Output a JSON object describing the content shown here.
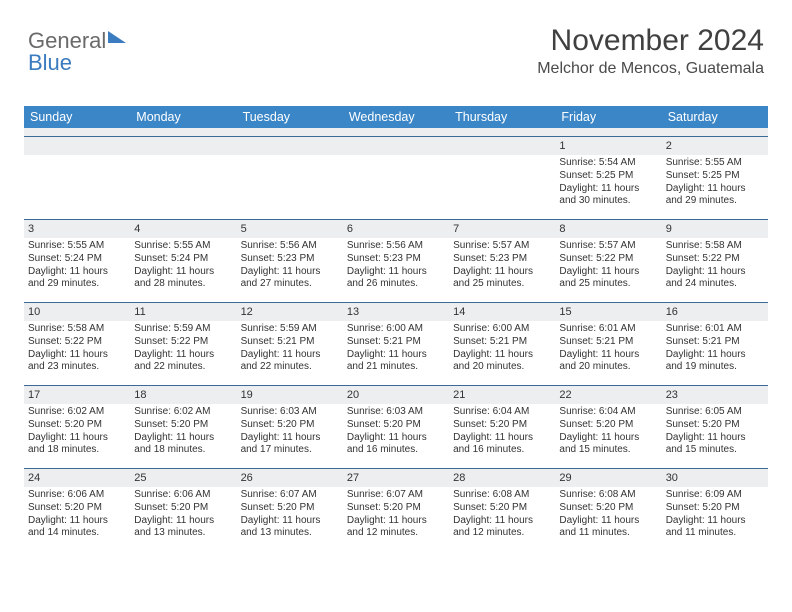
{
  "logo": {
    "text1": "General",
    "text2": "Blue"
  },
  "title": "November 2024",
  "location": "Melchor de Mencos, Guatemala",
  "colors": {
    "header_bg": "#3b86c7",
    "header_text": "#ffffff",
    "strip_bg": "#eceef0",
    "rule": "#3b6a96",
    "title_text": "#404040",
    "body_text": "#333333"
  },
  "fonts": {
    "title_size": 30,
    "location_size": 16,
    "dow_size": 12.5,
    "cell_size": 10
  },
  "days_of_week": [
    "Sunday",
    "Monday",
    "Tuesday",
    "Wednesday",
    "Thursday",
    "Friday",
    "Saturday"
  ],
  "weeks": [
    [
      null,
      null,
      null,
      null,
      null,
      {
        "n": "1",
        "sr": "5:54 AM",
        "ss": "5:25 PM",
        "dl": "11 hours and 30 minutes."
      },
      {
        "n": "2",
        "sr": "5:55 AM",
        "ss": "5:25 PM",
        "dl": "11 hours and 29 minutes."
      }
    ],
    [
      {
        "n": "3",
        "sr": "5:55 AM",
        "ss": "5:24 PM",
        "dl": "11 hours and 29 minutes."
      },
      {
        "n": "4",
        "sr": "5:55 AM",
        "ss": "5:24 PM",
        "dl": "11 hours and 28 minutes."
      },
      {
        "n": "5",
        "sr": "5:56 AM",
        "ss": "5:23 PM",
        "dl": "11 hours and 27 minutes."
      },
      {
        "n": "6",
        "sr": "5:56 AM",
        "ss": "5:23 PM",
        "dl": "11 hours and 26 minutes."
      },
      {
        "n": "7",
        "sr": "5:57 AM",
        "ss": "5:23 PM",
        "dl": "11 hours and 25 minutes."
      },
      {
        "n": "8",
        "sr": "5:57 AM",
        "ss": "5:22 PM",
        "dl": "11 hours and 25 minutes."
      },
      {
        "n": "9",
        "sr": "5:58 AM",
        "ss": "5:22 PM",
        "dl": "11 hours and 24 minutes."
      }
    ],
    [
      {
        "n": "10",
        "sr": "5:58 AM",
        "ss": "5:22 PM",
        "dl": "11 hours and 23 minutes."
      },
      {
        "n": "11",
        "sr": "5:59 AM",
        "ss": "5:22 PM",
        "dl": "11 hours and 22 minutes."
      },
      {
        "n": "12",
        "sr": "5:59 AM",
        "ss": "5:21 PM",
        "dl": "11 hours and 22 minutes."
      },
      {
        "n": "13",
        "sr": "6:00 AM",
        "ss": "5:21 PM",
        "dl": "11 hours and 21 minutes."
      },
      {
        "n": "14",
        "sr": "6:00 AM",
        "ss": "5:21 PM",
        "dl": "11 hours and 20 minutes."
      },
      {
        "n": "15",
        "sr": "6:01 AM",
        "ss": "5:21 PM",
        "dl": "11 hours and 20 minutes."
      },
      {
        "n": "16",
        "sr": "6:01 AM",
        "ss": "5:21 PM",
        "dl": "11 hours and 19 minutes."
      }
    ],
    [
      {
        "n": "17",
        "sr": "6:02 AM",
        "ss": "5:20 PM",
        "dl": "11 hours and 18 minutes."
      },
      {
        "n": "18",
        "sr": "6:02 AM",
        "ss": "5:20 PM",
        "dl": "11 hours and 18 minutes."
      },
      {
        "n": "19",
        "sr": "6:03 AM",
        "ss": "5:20 PM",
        "dl": "11 hours and 17 minutes."
      },
      {
        "n": "20",
        "sr": "6:03 AM",
        "ss": "5:20 PM",
        "dl": "11 hours and 16 minutes."
      },
      {
        "n": "21",
        "sr": "6:04 AM",
        "ss": "5:20 PM",
        "dl": "11 hours and 16 minutes."
      },
      {
        "n": "22",
        "sr": "6:04 AM",
        "ss": "5:20 PM",
        "dl": "11 hours and 15 minutes."
      },
      {
        "n": "23",
        "sr": "6:05 AM",
        "ss": "5:20 PM",
        "dl": "11 hours and 15 minutes."
      }
    ],
    [
      {
        "n": "24",
        "sr": "6:06 AM",
        "ss": "5:20 PM",
        "dl": "11 hours and 14 minutes."
      },
      {
        "n": "25",
        "sr": "6:06 AM",
        "ss": "5:20 PM",
        "dl": "11 hours and 13 minutes."
      },
      {
        "n": "26",
        "sr": "6:07 AM",
        "ss": "5:20 PM",
        "dl": "11 hours and 13 minutes."
      },
      {
        "n": "27",
        "sr": "6:07 AM",
        "ss": "5:20 PM",
        "dl": "11 hours and 12 minutes."
      },
      {
        "n": "28",
        "sr": "6:08 AM",
        "ss": "5:20 PM",
        "dl": "11 hours and 12 minutes."
      },
      {
        "n": "29",
        "sr": "6:08 AM",
        "ss": "5:20 PM",
        "dl": "11 hours and 11 minutes."
      },
      {
        "n": "30",
        "sr": "6:09 AM",
        "ss": "5:20 PM",
        "dl": "11 hours and 11 minutes."
      }
    ]
  ],
  "labels": {
    "sunrise": "Sunrise: ",
    "sunset": "Sunset: ",
    "daylight": "Daylight: "
  }
}
